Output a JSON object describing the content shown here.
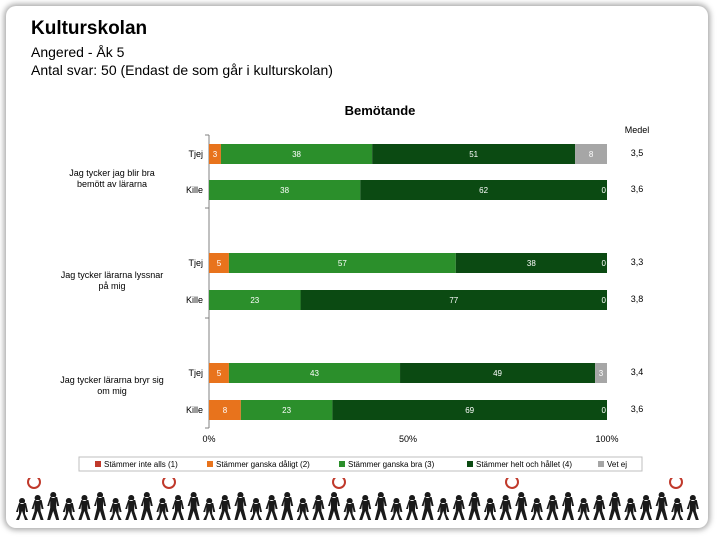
{
  "header": {
    "title": "Kulturskolan",
    "line1": "Angered - Åk 5",
    "line2": "Antal svar: 50 (Endast de som går i kulturskolan)"
  },
  "chart_data": {
    "type": "bar",
    "stacked": "100%",
    "orientation": "horizontal",
    "title": "Bemötande",
    "mean_header": "Medel",
    "xaxis_ticks": [
      "0%",
      "50%",
      "100%"
    ],
    "grid": false,
    "legend_position": "bottom",
    "legend": [
      {
        "label": "Stämmer inte alls (1)",
        "color": "#c0392b"
      },
      {
        "label": "Stämmer ganska dåligt (2)",
        "color": "#e8731c"
      },
      {
        "label": "Stämmer ganska bra (3)",
        "color": "#2b8f2b"
      },
      {
        "label": "Stämmer helt och hållet (4)",
        "color": "#0b4a12"
      },
      {
        "label": "Vet ej",
        "color": "#a6a6a6"
      }
    ],
    "groups": [
      {
        "question": "Jag tycker jag blir bra bemött av lärarna",
        "rows": [
          {
            "gender": "Tjej",
            "segments": [
              {
                "label": "0",
                "value": 0
              },
              {
                "label": "3",
                "value": 3
              },
              {
                "label": "38",
                "value": 38
              },
              {
                "label": "51",
                "value": 51
              },
              {
                "label": "8",
                "value": 8
              }
            ],
            "mean": "3,5"
          },
          {
            "gender": "Kille",
            "segments": [
              {
                "label": "0",
                "value": 0
              },
              {
                "label": "",
                "value": 0
              },
              {
                "label": "38",
                "value": 38
              },
              {
                "label": "62",
                "value": 62
              },
              {
                "label": "0",
                "value": 0
              }
            ],
            "mean": "3,6"
          }
        ]
      },
      {
        "question": "Jag tycker lärarna lyssnar på mig",
        "rows": [
          {
            "gender": "Tjej",
            "segments": [
              {
                "label": "0",
                "value": 0
              },
              {
                "label": "5",
                "value": 5
              },
              {
                "label": "57",
                "value": 57
              },
              {
                "label": "38",
                "value": 38
              },
              {
                "label": "0",
                "value": 0
              }
            ],
            "mean": "3,3"
          },
          {
            "gender": "Kille",
            "segments": [
              {
                "label": "0",
                "value": 0
              },
              {
                "label": "",
                "value": 0
              },
              {
                "label": "23",
                "value": 23
              },
              {
                "label": "77",
                "value": 77
              },
              {
                "label": "0",
                "value": 0
              }
            ],
            "mean": "3,8"
          }
        ]
      },
      {
        "question": "Jag tycker lärarna bryr sig om mig",
        "rows": [
          {
            "gender": "Tjej",
            "segments": [
              {
                "label": "0",
                "value": 0
              },
              {
                "label": "5",
                "value": 5
              },
              {
                "label": "43",
                "value": 43
              },
              {
                "label": "49",
                "value": 49
              },
              {
                "label": "3",
                "value": 3
              }
            ],
            "mean": "3,4"
          },
          {
            "gender": "Kille",
            "segments": [
              {
                "label": "0",
                "value": 0
              },
              {
                "label": "8",
                "value": 8
              },
              {
                "label": "23",
                "value": 23
              },
              {
                "label": "69",
                "value": 69
              },
              {
                "label": "0",
                "value": 0
              }
            ],
            "mean": "3,6"
          }
        ]
      }
    ]
  }
}
